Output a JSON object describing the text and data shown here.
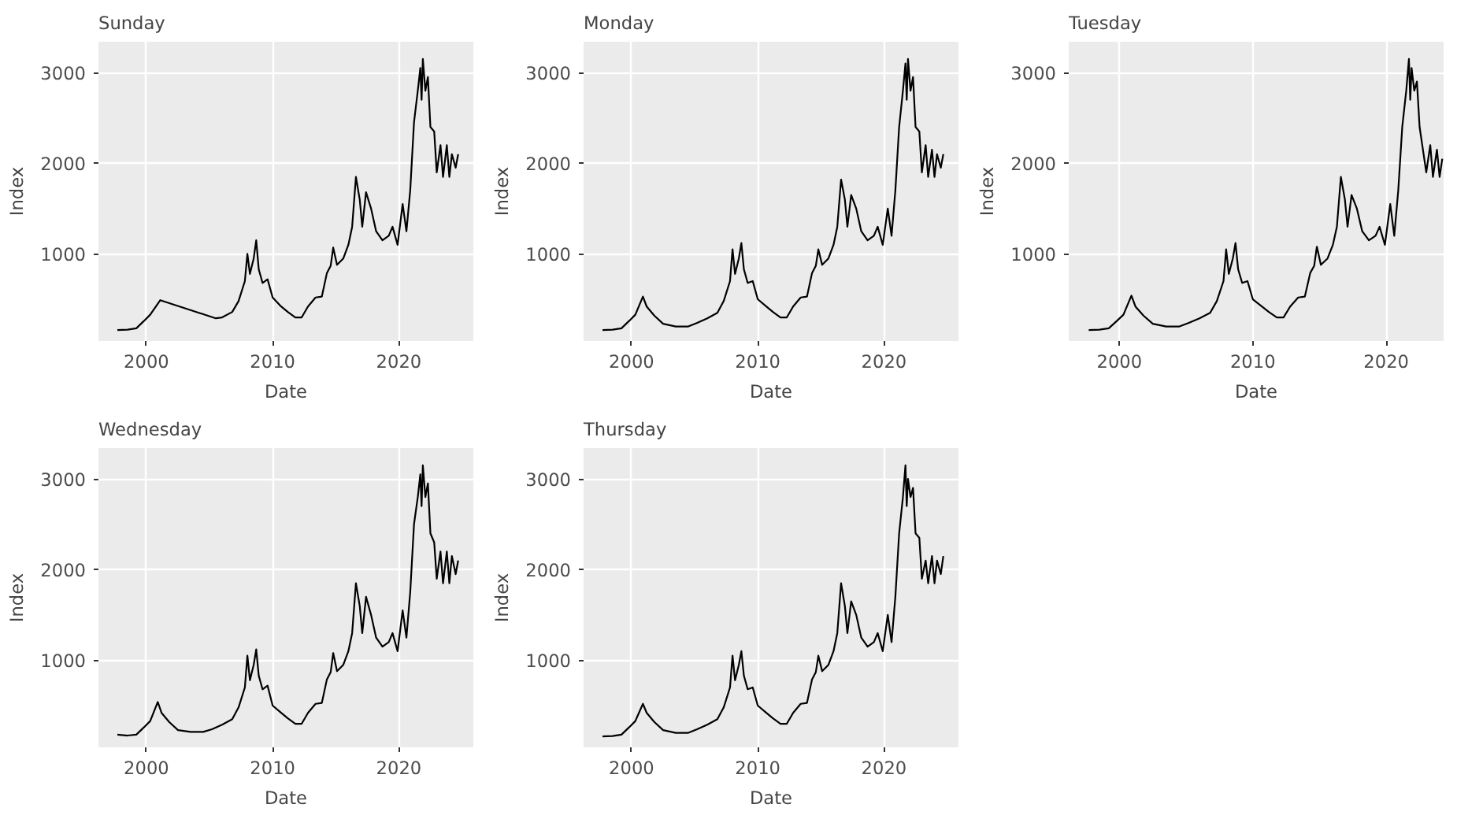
{
  "chart_data": [
    {
      "type": "line",
      "title": "Sunday",
      "xlabel": "Date",
      "ylabel": "Index",
      "color": "#000000",
      "grid": true,
      "xlim": [
        1996.2,
        2025.9
      ],
      "ylim": [
        40,
        3340
      ],
      "xticks": [
        2000,
        2010,
        2020
      ],
      "yticks": [
        1000,
        2000,
        3000
      ],
      "x": [
        1997.7,
        1998.5,
        1999.2,
        1999.8,
        2000.3,
        2001.1,
        2005.5,
        2006.0,
        2006.8,
        2007.3,
        2007.8,
        2008.0,
        2008.2,
        2008.5,
        2008.7,
        2008.9,
        2009.2,
        2009.6,
        2010.0,
        2010.6,
        2011.2,
        2011.8,
        2012.3,
        2012.8,
        2013.4,
        2013.9,
        2014.3,
        2014.6,
        2014.8,
        2015.1,
        2015.6,
        2016.0,
        2016.3,
        2016.6,
        2016.9,
        2017.1,
        2017.4,
        2017.8,
        2018.2,
        2018.7,
        2019.2,
        2019.5,
        2019.9,
        2020.3,
        2020.6,
        2020.9,
        2021.2,
        2021.5,
        2021.7,
        2021.8,
        2021.9,
        2022.1,
        2022.3,
        2022.5,
        2022.8,
        2023.0,
        2023.3,
        2023.5,
        2023.8,
        2024.0,
        2024.2,
        2024.5,
        2024.7
      ],
      "values": [
        160,
        165,
        180,
        260,
        330,
        490,
        290,
        300,
        360,
        480,
        700,
        1000,
        780,
        950,
        1150,
        830,
        680,
        720,
        520,
        430,
        360,
        300,
        300,
        420,
        520,
        530,
        790,
        870,
        1070,
        880,
        950,
        1100,
        1300,
        1850,
        1600,
        1300,
        1680,
        1500,
        1250,
        1150,
        1200,
        1300,
        1100,
        1550,
        1250,
        1700,
        2450,
        2800,
        3050,
        2700,
        3150,
        2800,
        2950,
        2400,
        2350,
        1900,
        2200,
        1850,
        2200,
        1850,
        2100,
        1950,
        2100
      ]
    },
    {
      "type": "line",
      "title": "Monday",
      "xlabel": "Date",
      "ylabel": "Index",
      "color": "#000000",
      "grid": true,
      "xlim": [
        1996.2,
        2025.9
      ],
      "ylim": [
        40,
        3340
      ],
      "xticks": [
        2000,
        2010,
        2020
      ],
      "yticks": [
        1000,
        2000,
        3000
      ],
      "x": [
        1997.7,
        1998.5,
        1999.2,
        1999.8,
        2000.3,
        2000.9,
        2001.2,
        2001.8,
        2002.5,
        2003.5,
        2004.5,
        2005.2,
        2006.0,
        2006.8,
        2007.3,
        2007.8,
        2008.0,
        2008.2,
        2008.5,
        2008.7,
        2008.9,
        2009.2,
        2009.6,
        2010.0,
        2010.6,
        2011.2,
        2011.8,
        2012.3,
        2012.8,
        2013.4,
        2013.9,
        2014.3,
        2014.6,
        2014.8,
        2015.1,
        2015.6,
        2016.0,
        2016.3,
        2016.6,
        2016.9,
        2017.1,
        2017.4,
        2017.8,
        2018.2,
        2018.7,
        2019.2,
        2019.5,
        2019.9,
        2020.3,
        2020.6,
        2020.9,
        2021.2,
        2021.5,
        2021.7,
        2021.8,
        2021.9,
        2022.1,
        2022.3,
        2022.5,
        2022.8,
        2023.0,
        2023.3,
        2023.5,
        2023.8,
        2024.0,
        2024.2,
        2024.5,
        2024.7
      ],
      "values": [
        160,
        165,
        180,
        260,
        330,
        530,
        420,
        320,
        230,
        200,
        200,
        240,
        290,
        350,
        480,
        700,
        1050,
        780,
        950,
        1120,
        830,
        680,
        700,
        500,
        430,
        360,
        300,
        300,
        420,
        520,
        530,
        790,
        870,
        1050,
        880,
        950,
        1100,
        1300,
        1820,
        1600,
        1300,
        1650,
        1500,
        1250,
        1150,
        1200,
        1300,
        1100,
        1500,
        1200,
        1700,
        2400,
        2800,
        3100,
        2700,
        3150,
        2800,
        2950,
        2400,
        2350,
        1900,
        2200,
        1850,
        2150,
        1850,
        2100,
        1950,
        2100
      ]
    },
    {
      "type": "line",
      "title": "Tuesday",
      "xlabel": "Date",
      "ylabel": "Index",
      "color": "#000000",
      "grid": true,
      "xlim": [
        1996.2,
        2024.3
      ],
      "ylim": [
        40,
        3340
      ],
      "xticks": [
        2000,
        2010,
        2020
      ],
      "yticks": [
        1000,
        2000,
        3000
      ],
      "x": [
        1997.7,
        1998.5,
        1999.2,
        1999.8,
        2000.3,
        2000.9,
        2001.2,
        2001.8,
        2002.5,
        2003.5,
        2004.5,
        2005.2,
        2006.0,
        2006.8,
        2007.3,
        2007.8,
        2008.0,
        2008.2,
        2008.5,
        2008.7,
        2008.9,
        2009.2,
        2009.6,
        2010.0,
        2010.6,
        2011.2,
        2011.8,
        2012.3,
        2012.8,
        2013.4,
        2013.9,
        2014.3,
        2014.6,
        2014.8,
        2015.1,
        2015.6,
        2016.0,
        2016.3,
        2016.6,
        2016.9,
        2017.1,
        2017.4,
        2017.8,
        2018.2,
        2018.7,
        2019.2,
        2019.5,
        2019.9,
        2020.3,
        2020.6,
        2020.9,
        2021.2,
        2021.5,
        2021.7,
        2021.8,
        2021.9,
        2022.1,
        2022.3,
        2022.5,
        2022.8,
        2023.0,
        2023.3,
        2023.5,
        2023.8,
        2024.0,
        2024.2
      ],
      "values": [
        160,
        165,
        180,
        260,
        330,
        540,
        420,
        320,
        230,
        200,
        200,
        240,
        290,
        350,
        480,
        700,
        1050,
        780,
        950,
        1120,
        830,
        680,
        700,
        500,
        430,
        360,
        300,
        300,
        420,
        520,
        530,
        790,
        870,
        1080,
        880,
        950,
        1100,
        1300,
        1850,
        1600,
        1300,
        1650,
        1500,
        1250,
        1150,
        1200,
        1300,
        1100,
        1550,
        1200,
        1700,
        2400,
        2800,
        3150,
        2700,
        3050,
        2800,
        2900,
        2400,
        2100,
        1900,
        2200,
        1850,
        2150,
        1850,
        2050
      ]
    },
    {
      "type": "line",
      "title": "Wednesday",
      "xlabel": "Date",
      "ylabel": "Index",
      "color": "#000000",
      "grid": true,
      "xlim": [
        1996.2,
        2025.9
      ],
      "ylim": [
        40,
        3340
      ],
      "xticks": [
        2000,
        2010,
        2020
      ],
      "yticks": [
        1000,
        2000,
        3000
      ],
      "x": [
        1997.7,
        1998.5,
        1999.2,
        1999.8,
        2000.3,
        2000.9,
        2001.2,
        2001.8,
        2002.5,
        2003.5,
        2004.5,
        2005.2,
        2006.0,
        2006.8,
        2007.3,
        2007.8,
        2008.0,
        2008.2,
        2008.5,
        2008.7,
        2008.9,
        2009.2,
        2009.6,
        2010.0,
        2010.6,
        2011.2,
        2011.8,
        2012.3,
        2012.8,
        2013.4,
        2013.9,
        2014.3,
        2014.6,
        2014.8,
        2015.1,
        2015.6,
        2016.0,
        2016.3,
        2016.6,
        2016.9,
        2017.1,
        2017.4,
        2017.8,
        2018.2,
        2018.7,
        2019.2,
        2019.5,
        2019.9,
        2020.3,
        2020.6,
        2020.9,
        2021.2,
        2021.5,
        2021.7,
        2021.8,
        2021.9,
        2022.1,
        2022.3,
        2022.5,
        2022.8,
        2023.0,
        2023.3,
        2023.5,
        2023.8,
        2024.0,
        2024.2,
        2024.5,
        2024.7
      ],
      "values": [
        180,
        170,
        180,
        260,
        330,
        540,
        420,
        320,
        230,
        210,
        210,
        240,
        290,
        350,
        480,
        700,
        1050,
        780,
        950,
        1120,
        830,
        680,
        720,
        500,
        430,
        360,
        300,
        300,
        420,
        520,
        530,
        790,
        870,
        1080,
        880,
        950,
        1100,
        1300,
        1850,
        1600,
        1300,
        1700,
        1500,
        1250,
        1150,
        1200,
        1300,
        1100,
        1550,
        1250,
        1750,
        2500,
        2800,
        3050,
        2700,
        3150,
        2800,
        2950,
        2400,
        2300,
        1900,
        2200,
        1850,
        2200,
        1850,
        2150,
        1950,
        2100
      ]
    },
    {
      "type": "line",
      "title": "Thursday",
      "xlabel": "Date",
      "ylabel": "Index",
      "color": "#000000",
      "grid": true,
      "xlim": [
        1996.2,
        2025.9
      ],
      "ylim": [
        40,
        3340
      ],
      "xticks": [
        2000,
        2010,
        2020
      ],
      "yticks": [
        1000,
        2000,
        3000
      ],
      "x": [
        1997.7,
        1998.5,
        1999.2,
        1999.8,
        2000.3,
        2000.9,
        2001.2,
        2001.8,
        2002.5,
        2003.5,
        2004.5,
        2005.2,
        2006.0,
        2006.8,
        2007.3,
        2007.8,
        2008.0,
        2008.2,
        2008.5,
        2008.7,
        2008.9,
        2009.2,
        2009.6,
        2010.0,
        2010.6,
        2011.2,
        2011.8,
        2012.3,
        2012.8,
        2013.4,
        2013.9,
        2014.3,
        2014.6,
        2014.8,
        2015.1,
        2015.6,
        2016.0,
        2016.3,
        2016.6,
        2016.9,
        2017.1,
        2017.4,
        2017.8,
        2018.2,
        2018.7,
        2019.2,
        2019.5,
        2019.9,
        2020.3,
        2020.6,
        2020.9,
        2021.2,
        2021.5,
        2021.7,
        2021.8,
        2021.9,
        2022.1,
        2022.3,
        2022.5,
        2022.8,
        2023.0,
        2023.3,
        2023.5,
        2023.8,
        2024.0,
        2024.2,
        2024.5,
        2024.7
      ],
      "values": [
        160,
        165,
        180,
        260,
        330,
        520,
        420,
        320,
        230,
        200,
        200,
        240,
        290,
        350,
        480,
        700,
        1050,
        780,
        950,
        1100,
        830,
        680,
        700,
        500,
        430,
        360,
        300,
        300,
        420,
        520,
        530,
        790,
        870,
        1050,
        880,
        950,
        1100,
        1300,
        1850,
        1600,
        1300,
        1650,
        1500,
        1250,
        1150,
        1200,
        1300,
        1100,
        1500,
        1200,
        1700,
        2400,
        2800,
        3150,
        2700,
        3000,
        2800,
        2900,
        2400,
        2350,
        1900,
        2100,
        1850,
        2150,
        1850,
        2100,
        1950,
        2150
      ]
    }
  ]
}
